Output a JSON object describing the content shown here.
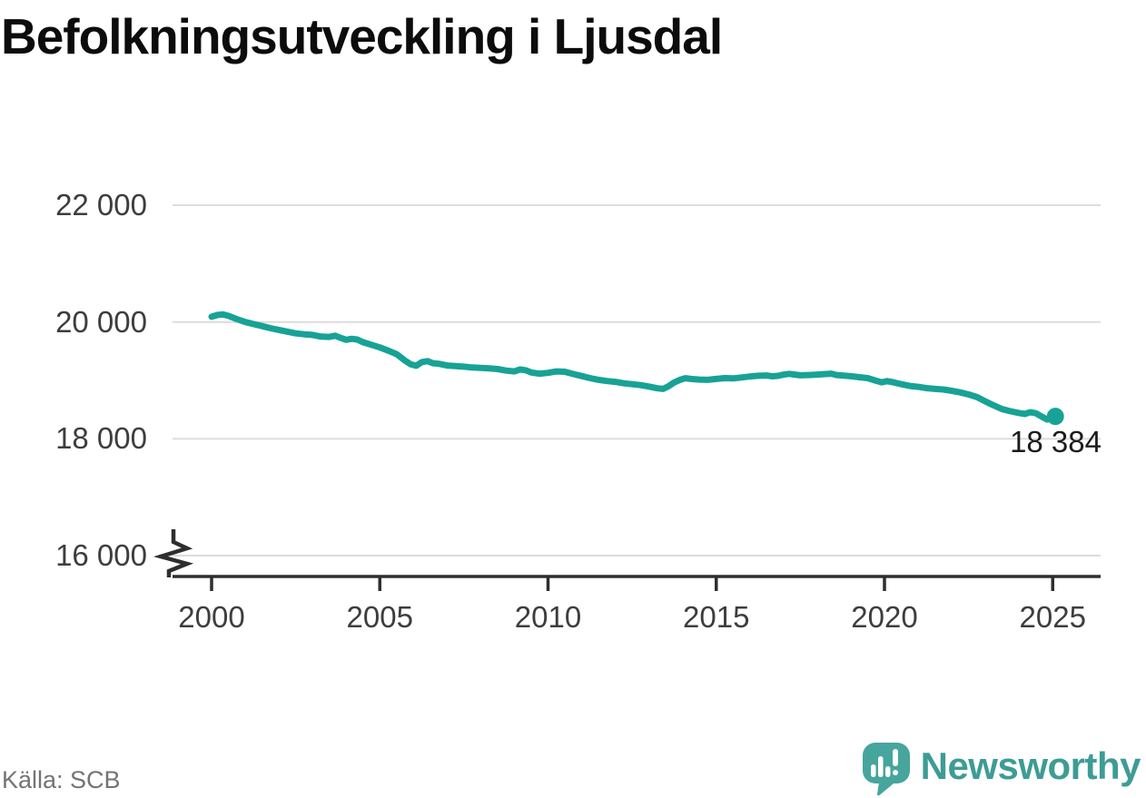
{
  "title": "Befolkningsutveckling i Ljusdal",
  "footer": {
    "source": "Källa: SCB",
    "brand": "Newsworthy"
  },
  "annotation": {
    "end_value_label": "18 384"
  },
  "colors": {
    "line": "#18a296",
    "grid": "#dcdcdc",
    "axis": "#2e2e2e",
    "tick_text": "#3d3d3d",
    "title_text": "#0c0c0c",
    "annotation_text": "#1b1b1b",
    "source_text": "#747474",
    "brand_teal": "#3d9c95",
    "logo_fill": "#46a59d"
  },
  "chart_data": {
    "type": "line",
    "title": "Befolkningsutveckling i Ljusdal",
    "xlabel": "",
    "ylabel": "",
    "grid": "horizontal gridlines only",
    "legend_position": "none",
    "axis_break_bottom_left": true,
    "xlim": [
      2000,
      2025.1
    ],
    "ylim_shown_ticks": [
      16000,
      22000
    ],
    "x_ticks": [
      {
        "value": 2000,
        "label": "2000"
      },
      {
        "value": 2005,
        "label": "2005"
      },
      {
        "value": 2010,
        "label": "2010"
      },
      {
        "value": 2015,
        "label": "2015"
      },
      {
        "value": 2020,
        "label": "2020"
      },
      {
        "value": 2025,
        "label": "2025"
      }
    ],
    "y_ticks": [
      {
        "value": 22000,
        "label": "22 000"
      },
      {
        "value": 20000,
        "label": "20 000"
      },
      {
        "value": 18000,
        "label": "18 000"
      },
      {
        "value": 16000,
        "label": "16 000"
      }
    ],
    "series": [
      {
        "name": "Befolkning",
        "end_value": 18384,
        "end_label": "18 384",
        "points": [
          [
            2000.0,
            20090
          ],
          [
            2000.17,
            20120
          ],
          [
            2000.33,
            20130
          ],
          [
            2000.5,
            20105
          ],
          [
            2000.75,
            20050
          ],
          [
            2001.0,
            20000
          ],
          [
            2001.25,
            19965
          ],
          [
            2001.5,
            19930
          ],
          [
            2001.75,
            19895
          ],
          [
            2002.0,
            19865
          ],
          [
            2002.25,
            19835
          ],
          [
            2002.5,
            19805
          ],
          [
            2002.75,
            19790
          ],
          [
            2003.0,
            19780
          ],
          [
            2003.25,
            19750
          ],
          [
            2003.5,
            19745
          ],
          [
            2003.67,
            19765
          ],
          [
            2003.83,
            19730
          ],
          [
            2004.0,
            19695
          ],
          [
            2004.17,
            19712
          ],
          [
            2004.33,
            19700
          ],
          [
            2004.5,
            19655
          ],
          [
            2004.75,
            19610
          ],
          [
            2005.0,
            19565
          ],
          [
            2005.25,
            19510
          ],
          [
            2005.5,
            19450
          ],
          [
            2005.75,
            19340
          ],
          [
            2005.92,
            19275
          ],
          [
            2006.08,
            19250
          ],
          [
            2006.25,
            19315
          ],
          [
            2006.42,
            19330
          ],
          [
            2006.58,
            19295
          ],
          [
            2006.75,
            19285
          ],
          [
            2007.0,
            19255
          ],
          [
            2007.25,
            19245
          ],
          [
            2007.5,
            19235
          ],
          [
            2007.75,
            19222
          ],
          [
            2008.0,
            19215
          ],
          [
            2008.25,
            19205
          ],
          [
            2008.5,
            19195
          ],
          [
            2008.75,
            19168
          ],
          [
            2009.0,
            19155
          ],
          [
            2009.17,
            19188
          ],
          [
            2009.33,
            19175
          ],
          [
            2009.5,
            19135
          ],
          [
            2009.75,
            19115
          ],
          [
            2010.0,
            19130
          ],
          [
            2010.25,
            19155
          ],
          [
            2010.5,
            19148
          ],
          [
            2010.75,
            19110
          ],
          [
            2011.0,
            19075
          ],
          [
            2011.25,
            19040
          ],
          [
            2011.5,
            19010
          ],
          [
            2011.75,
            18990
          ],
          [
            2012.0,
            18975
          ],
          [
            2012.25,
            18950
          ],
          [
            2012.5,
            18935
          ],
          [
            2012.75,
            18920
          ],
          [
            2013.0,
            18895
          ],
          [
            2013.25,
            18865
          ],
          [
            2013.42,
            18855
          ],
          [
            2013.58,
            18900
          ],
          [
            2013.75,
            18965
          ],
          [
            2013.92,
            19010
          ],
          [
            2014.08,
            19038
          ],
          [
            2014.25,
            19025
          ],
          [
            2014.5,
            19015
          ],
          [
            2014.75,
            19010
          ],
          [
            2015.0,
            19025
          ],
          [
            2015.25,
            19040
          ],
          [
            2015.5,
            19035
          ],
          [
            2015.75,
            19050
          ],
          [
            2016.0,
            19068
          ],
          [
            2016.25,
            19080
          ],
          [
            2016.5,
            19085
          ],
          [
            2016.67,
            19070
          ],
          [
            2016.83,
            19078
          ],
          [
            2017.0,
            19098
          ],
          [
            2017.17,
            19112
          ],
          [
            2017.33,
            19100
          ],
          [
            2017.5,
            19088
          ],
          [
            2017.75,
            19092
          ],
          [
            2018.0,
            19100
          ],
          [
            2018.25,
            19110
          ],
          [
            2018.42,
            19115
          ],
          [
            2018.58,
            19092
          ],
          [
            2018.75,
            19085
          ],
          [
            2019.0,
            19072
          ],
          [
            2019.25,
            19055
          ],
          [
            2019.5,
            19040
          ],
          [
            2019.75,
            18995
          ],
          [
            2019.92,
            18968
          ],
          [
            2020.08,
            18988
          ],
          [
            2020.25,
            18970
          ],
          [
            2020.5,
            18935
          ],
          [
            2020.75,
            18905
          ],
          [
            2021.0,
            18890
          ],
          [
            2021.25,
            18868
          ],
          [
            2021.5,
            18855
          ],
          [
            2021.75,
            18845
          ],
          [
            2022.0,
            18822
          ],
          [
            2022.25,
            18795
          ],
          [
            2022.5,
            18760
          ],
          [
            2022.75,
            18715
          ],
          [
            2023.0,
            18640
          ],
          [
            2023.25,
            18572
          ],
          [
            2023.5,
            18508
          ],
          [
            2023.75,
            18472
          ],
          [
            2024.0,
            18442
          ],
          [
            2024.17,
            18425
          ],
          [
            2024.33,
            18455
          ],
          [
            2024.5,
            18438
          ],
          [
            2024.67,
            18382
          ],
          [
            2024.83,
            18330
          ],
          [
            2025.0,
            18356
          ],
          [
            2025.08,
            18384
          ]
        ]
      }
    ]
  }
}
